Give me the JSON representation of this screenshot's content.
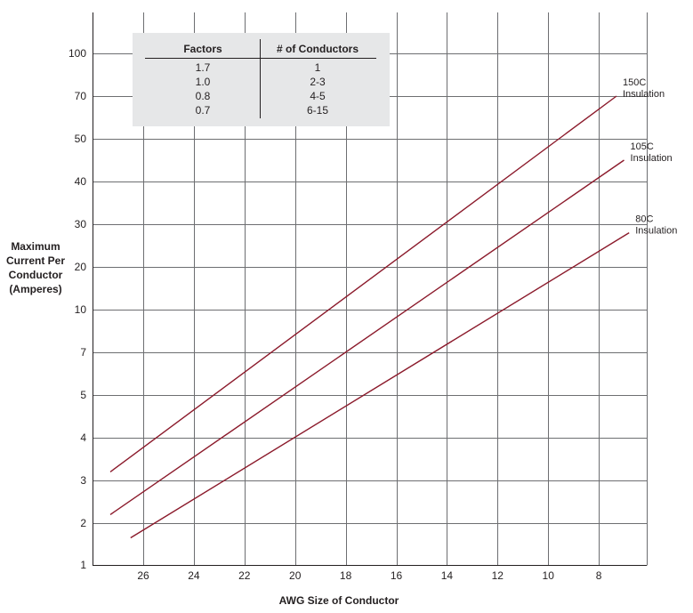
{
  "chart_data": {
    "type": "line",
    "title": "",
    "xlabel": "AWG Size of Conductor",
    "ylabel": [
      "Maximum",
      "Current Per",
      "Conductor",
      "(Amperes)"
    ],
    "x_ticks": [
      26,
      24,
      22,
      20,
      18,
      16,
      14,
      12,
      10,
      8
    ],
    "x_reversed": true,
    "xlim": [
      27.3,
      6.4
    ],
    "y_ticks": [
      1,
      2,
      3,
      4,
      5,
      7,
      10,
      20,
      30,
      40,
      50,
      70,
      100
    ],
    "y_scale": "categorical-spaced (uneven, one gridline per tick)",
    "grid": true,
    "series": [
      {
        "name": "150C Insulation",
        "label_lines": [
          "150C",
          "Insulation"
        ],
        "color": "#8b1a2b",
        "points": [
          [
            27.3,
            3.2
          ],
          [
            7.3,
            70
          ]
        ]
      },
      {
        "name": "105C Insulation",
        "label_lines": [
          "105C",
          "Insulation"
        ],
        "color": "#8b1a2b",
        "points": [
          [
            27.3,
            2.2
          ],
          [
            7.0,
            45
          ]
        ]
      },
      {
        "name": "80C Insulation",
        "label_lines": [
          "80C",
          "Insulation"
        ],
        "color": "#8b1a2b",
        "points": [
          [
            26.5,
            1.65
          ],
          [
            6.8,
            28
          ]
        ]
      }
    ],
    "table": {
      "headers": [
        "Factors",
        "# of Conductors"
      ],
      "rows": [
        [
          "1.7",
          "1"
        ],
        [
          "1.0",
          "2-3"
        ],
        [
          "0.8",
          "4-5"
        ],
        [
          "0.7",
          "6-15"
        ]
      ]
    }
  }
}
